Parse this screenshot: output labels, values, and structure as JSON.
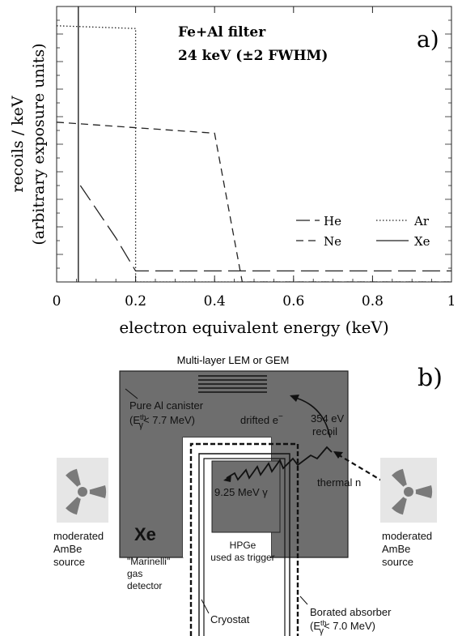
{
  "panel_a": {
    "label": "a)",
    "annotation_line1": "Fe+Al filter",
    "annotation_line2": "24 keV (±2 FWHM)",
    "ylabel_line1": "recoils / keV",
    "ylabel_line2": "(arbitrary exposure units)",
    "xlabel": "electron equivalent energy (keV)"
  },
  "panel_b": {
    "label": "b)",
    "lem_label": "Multi-layer LEM or GEM",
    "canister_label": "Pure Al canister",
    "canister_energy": "(E",
    "canister_energy_sup": "th",
    "canister_energy_sub": "γ",
    "canister_energy_tail": "< 7.7 MeV)",
    "drifted_label": "drifted e",
    "drifted_sup": "−",
    "recoil_energy": "354 eV",
    "recoil_label": "recoil",
    "thermal_label": "thermal n",
    "gamma_label": "9.25 MeV γ",
    "xe_label": "Xe",
    "hpge_line1": "HPGe",
    "hpge_line2": "used as trigger",
    "marinelli_line1": "\"Marinelli\"",
    "marinelli_line2": "gas",
    "marinelli_line3": "detector",
    "cryostat_label": "Cryostat",
    "borated_line1": "Borated absorber",
    "borated_energy": "(E",
    "borated_energy_sup": "th",
    "borated_energy_sub": "γ",
    "borated_energy_tail": "< 7.0 MeV)",
    "source_left_line1": "moderated",
    "source_left_line2": "AmBe",
    "source_left_line3": "source",
    "source_right_line1": "moderated",
    "source_right_line2": "AmBe",
    "source_right_line3": "source"
  },
  "chart_data": {
    "type": "line",
    "title": "",
    "xlabel": "electron equivalent energy (keV)",
    "ylabel": "recoils / keV (arbitrary exposure units)",
    "xlim": [
      0,
      1
    ],
    "x_ticks": [
      "0",
      "0.2",
      "0.4",
      "0.6",
      "0.8",
      "1"
    ],
    "x_tick_values": [
      0,
      0.2,
      0.4,
      0.6,
      0.8,
      1
    ],
    "ylim": [
      0,
      10
    ],
    "y_tick_labels_shown": false,
    "grid": false,
    "legend_placement": "bottom-right",
    "series": [
      {
        "name": "He",
        "style": "long-dash",
        "x": [
          0.0,
          0.3
        ],
        "y": [
          0.0,
          0.0
        ]
      },
      {
        "name": "Ar",
        "style": "dotted",
        "x": [
          0.0,
          0.2,
          0.2,
          1.0
        ],
        "y": [
          9.3,
          9.2,
          0.0,
          0.0
        ]
      },
      {
        "name": "Ne",
        "style": "dashed",
        "x": [
          0.0,
          0.4,
          0.47,
          1.0
        ],
        "y": [
          5.8,
          5.4,
          0.0,
          0.0
        ]
      },
      {
        "name": "Xe",
        "style": "solid",
        "x": [
          0.055,
          0.055
        ],
        "y": [
          0.0,
          10.0
        ]
      }
    ],
    "he_curve": {
      "x": [
        0.06,
        0.15,
        0.2,
        1.0
      ],
      "y": [
        3.5,
        1.6,
        0.4,
        0.4
      ]
    }
  }
}
